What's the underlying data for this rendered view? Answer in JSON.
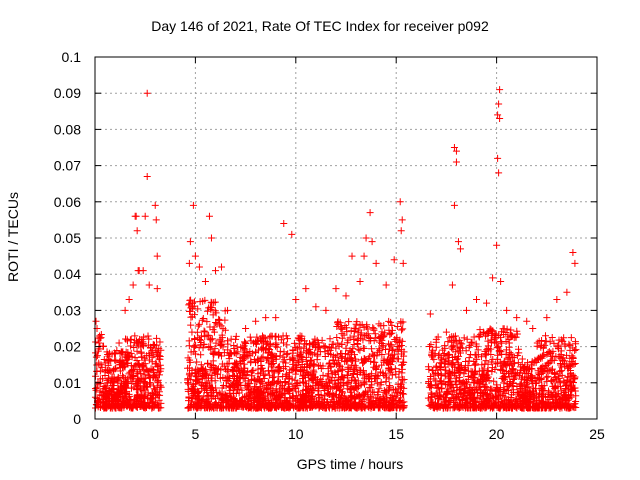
{
  "chart_data": {
    "type": "scatter",
    "title": "Day 146 of 2021, Rate Of TEC Index for receiver p092",
    "xlabel": "GPS time / hours",
    "ylabel": "ROTI / TECUs",
    "xlim": [
      0,
      25
    ],
    "ylim": [
      0,
      0.1
    ],
    "x_ticks": [
      "0",
      "5",
      "10",
      "15",
      "20",
      "25"
    ],
    "y_ticks": [
      "0",
      "0.01",
      "0.02",
      "0.03",
      "0.04",
      "0.05",
      "0.06",
      "0.07",
      "0.08",
      "0.09",
      "0.1"
    ],
    "grid": true,
    "marker": "+",
    "color": "#ff0000",
    "data_gaps_hours": [
      [
        3.3,
        4.6
      ],
      [
        15.4,
        16.6
      ]
    ],
    "series": [
      {
        "points": [
          [
            0.05,
            0.027
          ],
          [
            0.1,
            0.025
          ],
          [
            0.2,
            0.021
          ],
          [
            0.3,
            0.015
          ],
          [
            0.5,
            0.012
          ],
          [
            0.8,
            0.01
          ],
          [
            1.0,
            0.018
          ],
          [
            1.2,
            0.021
          ],
          [
            1.5,
            0.03
          ],
          [
            1.7,
            0.033
          ],
          [
            1.9,
            0.037
          ],
          [
            2.0,
            0.056
          ],
          [
            2.05,
            0.056
          ],
          [
            2.1,
            0.052
          ],
          [
            2.15,
            0.041
          ],
          [
            2.2,
            0.041
          ],
          [
            2.4,
            0.041
          ],
          [
            2.5,
            0.056
          ],
          [
            2.6,
            0.09
          ],
          [
            2.6,
            0.067
          ],
          [
            2.7,
            0.037
          ],
          [
            3.0,
            0.059
          ],
          [
            3.05,
            0.055
          ],
          [
            3.1,
            0.045
          ],
          [
            3.1,
            0.036
          ],
          [
            4.7,
            0.043
          ],
          [
            4.75,
            0.049
          ],
          [
            4.9,
            0.059
          ],
          [
            5.0,
            0.045
          ],
          [
            5.2,
            0.042
          ],
          [
            5.5,
            0.038
          ],
          [
            5.7,
            0.056
          ],
          [
            5.8,
            0.05
          ],
          [
            6.0,
            0.041
          ],
          [
            6.3,
            0.042
          ],
          [
            6.6,
            0.03
          ],
          [
            7.0,
            0.022
          ],
          [
            7.5,
            0.025
          ],
          [
            8.0,
            0.027
          ],
          [
            8.5,
            0.028
          ],
          [
            9.0,
            0.028
          ],
          [
            9.4,
            0.054
          ],
          [
            9.8,
            0.051
          ],
          [
            10.0,
            0.033
          ],
          [
            10.5,
            0.036
          ],
          [
            11.0,
            0.031
          ],
          [
            11.5,
            0.03
          ],
          [
            12.0,
            0.036
          ],
          [
            12.5,
            0.034
          ],
          [
            12.8,
            0.045
          ],
          [
            13.2,
            0.038
          ],
          [
            13.4,
            0.045
          ],
          [
            13.5,
            0.05
          ],
          [
            13.7,
            0.057
          ],
          [
            13.8,
            0.049
          ],
          [
            14.0,
            0.043
          ],
          [
            14.5,
            0.037
          ],
          [
            14.9,
            0.044
          ],
          [
            15.2,
            0.06
          ],
          [
            15.3,
            0.055
          ],
          [
            15.25,
            0.052
          ],
          [
            15.35,
            0.043
          ],
          [
            16.7,
            0.029
          ],
          [
            17.0,
            0.022
          ],
          [
            17.5,
            0.024
          ],
          [
            17.8,
            0.037
          ],
          [
            17.9,
            0.059
          ],
          [
            17.9,
            0.075
          ],
          [
            18.0,
            0.074
          ],
          [
            18.0,
            0.071
          ],
          [
            18.1,
            0.049
          ],
          [
            18.2,
            0.047
          ],
          [
            18.5,
            0.03
          ],
          [
            19.0,
            0.033
          ],
          [
            19.5,
            0.032
          ],
          [
            19.8,
            0.039
          ],
          [
            20.0,
            0.048
          ],
          [
            20.05,
            0.072
          ],
          [
            20.1,
            0.068
          ],
          [
            20.05,
            0.084
          ],
          [
            20.1,
            0.087
          ],
          [
            20.15,
            0.091
          ],
          [
            20.15,
            0.083
          ],
          [
            20.2,
            0.038
          ],
          [
            20.5,
            0.03
          ],
          [
            21.0,
            0.028
          ],
          [
            21.5,
            0.027
          ],
          [
            21.8,
            0.025
          ],
          [
            22.5,
            0.028
          ],
          [
            23.0,
            0.033
          ],
          [
            23.5,
            0.035
          ],
          [
            23.8,
            0.046
          ],
          [
            23.9,
            0.043
          ]
        ]
      }
    ]
  }
}
